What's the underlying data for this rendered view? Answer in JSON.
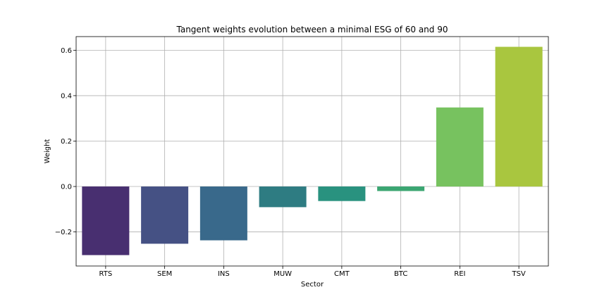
{
  "chart_data": {
    "type": "bar",
    "title": "Tangent weights evolution between a minimal ESG of 60 and 90",
    "xlabel": "Sector",
    "ylabel": "Weight",
    "categories": [
      "RTS",
      "SEM",
      "INS",
      "MUW",
      "CMT",
      "BTC",
      "REI",
      "TSV"
    ],
    "values": [
      -0.302,
      -0.252,
      -0.237,
      -0.091,
      -0.064,
      -0.02,
      0.348,
      0.615
    ],
    "colors": [
      "#482f70",
      "#455184",
      "#39698b",
      "#2e7c82",
      "#29927f",
      "#3ba672",
      "#77c25f",
      "#a9c63f"
    ],
    "ylim": [
      -0.35,
      0.66
    ],
    "yticks": [
      -0.2,
      0.0,
      0.2,
      0.4,
      0.6
    ],
    "ytick_labels": [
      "−0.2",
      "0.0",
      "0.2",
      "0.4",
      "0.6"
    ],
    "grid": true
  }
}
